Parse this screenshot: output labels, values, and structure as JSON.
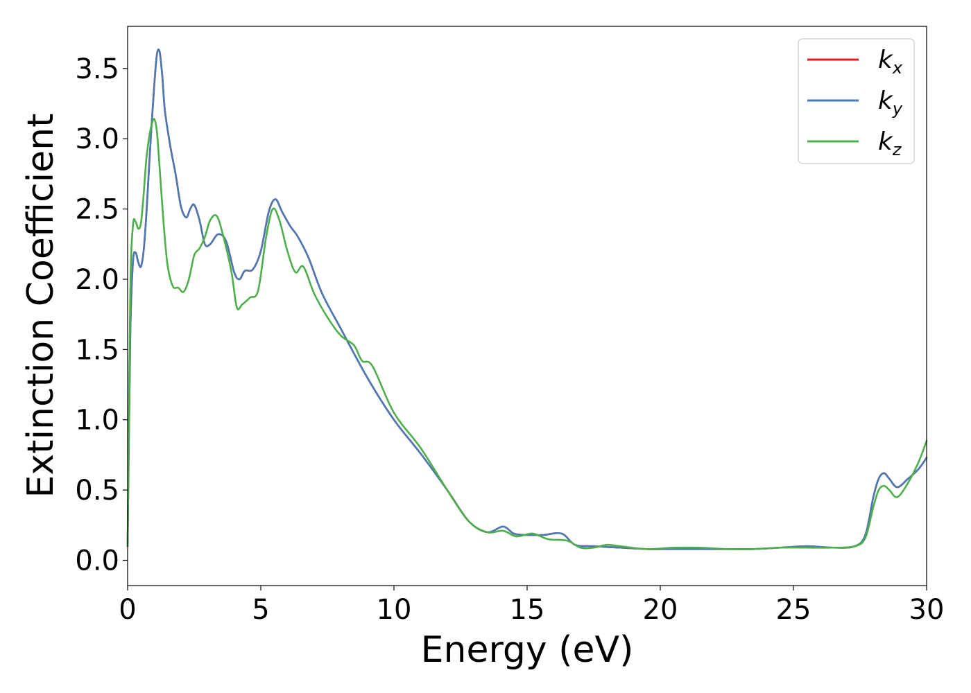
{
  "chart_data": {
    "type": "line",
    "xlabel": "Energy (eV)",
    "ylabel": "Extinction Coefficient",
    "xlim": [
      0,
      30
    ],
    "ylim": [
      -0.18,
      3.8
    ],
    "xticks": [
      0,
      5,
      10,
      15,
      20,
      25,
      30
    ],
    "xtick_labels": [
      "0",
      "5",
      "10",
      "15",
      "20",
      "25",
      "30"
    ],
    "yticks": [
      0.0,
      0.5,
      1.0,
      1.5,
      2.0,
      2.5,
      3.0,
      3.5
    ],
    "ytick_labels": [
      "0.0",
      "0.5",
      "1.0",
      "1.5",
      "2.0",
      "2.5",
      "3.0",
      "3.5"
    ],
    "grid": false,
    "legend_position": "top-right",
    "series": [
      {
        "name": "k",
        "subscript": "x",
        "color": "#e41a1c",
        "x": [
          0,
          0.1,
          0.2,
          0.3,
          0.4,
          0.5,
          0.6,
          0.7,
          0.8,
          0.9,
          1.0,
          1.1,
          1.2,
          1.3,
          1.4,
          1.6,
          1.8,
          2.0,
          2.2,
          2.35,
          2.5,
          2.7,
          2.9,
          3.1,
          3.4,
          3.7,
          4.0,
          4.2,
          4.4,
          4.7,
          5.0,
          5.3,
          5.55,
          5.8,
          6.1,
          6.4,
          6.8,
          7.3,
          8.0,
          9.0,
          10.0,
          11.0,
          12.0,
          12.8,
          13.5,
          14.1,
          14.5,
          15.0,
          15.6,
          16.3,
          16.8,
          17.5,
          18.5,
          19.5,
          20.5,
          21.5,
          22.5,
          23.5,
          24.5,
          25.5,
          26.5,
          27.3,
          27.7,
          28.0,
          28.2,
          28.4,
          28.6,
          28.9,
          29.3,
          29.7,
          30.0
        ],
        "y": [
          0.1,
          1.6,
          2.12,
          2.19,
          2.12,
          2.09,
          2.2,
          2.45,
          2.78,
          3.1,
          3.38,
          3.6,
          3.62,
          3.45,
          3.2,
          2.95,
          2.75,
          2.52,
          2.44,
          2.5,
          2.53,
          2.42,
          2.25,
          2.25,
          2.32,
          2.27,
          2.05,
          2.0,
          2.06,
          2.07,
          2.2,
          2.48,
          2.57,
          2.48,
          2.38,
          2.3,
          2.15,
          1.9,
          1.65,
          1.3,
          1.0,
          0.76,
          0.5,
          0.28,
          0.2,
          0.24,
          0.19,
          0.18,
          0.18,
          0.19,
          0.11,
          0.1,
          0.09,
          0.08,
          0.08,
          0.08,
          0.08,
          0.08,
          0.09,
          0.1,
          0.09,
          0.1,
          0.18,
          0.45,
          0.58,
          0.62,
          0.58,
          0.52,
          0.58,
          0.65,
          0.73
        ]
      },
      {
        "name": "k",
        "subscript": "y",
        "color": "#4a7ab5",
        "x": [
          0,
          0.1,
          0.2,
          0.3,
          0.4,
          0.5,
          0.6,
          0.7,
          0.8,
          0.9,
          1.0,
          1.1,
          1.2,
          1.3,
          1.4,
          1.6,
          1.8,
          2.0,
          2.2,
          2.35,
          2.5,
          2.7,
          2.9,
          3.1,
          3.4,
          3.7,
          4.0,
          4.2,
          4.4,
          4.7,
          5.0,
          5.3,
          5.55,
          5.8,
          6.1,
          6.4,
          6.8,
          7.3,
          8.0,
          9.0,
          10.0,
          11.0,
          12.0,
          12.8,
          13.5,
          14.1,
          14.5,
          15.0,
          15.6,
          16.3,
          16.8,
          17.5,
          18.5,
          19.5,
          20.5,
          21.5,
          22.5,
          23.5,
          24.5,
          25.5,
          26.5,
          27.3,
          27.7,
          28.0,
          28.2,
          28.4,
          28.6,
          28.9,
          29.3,
          29.7,
          30.0
        ],
        "y": [
          0.1,
          1.6,
          2.12,
          2.19,
          2.12,
          2.09,
          2.2,
          2.45,
          2.78,
          3.1,
          3.38,
          3.6,
          3.62,
          3.45,
          3.2,
          2.95,
          2.75,
          2.52,
          2.44,
          2.5,
          2.53,
          2.42,
          2.25,
          2.25,
          2.32,
          2.27,
          2.05,
          2.0,
          2.06,
          2.07,
          2.2,
          2.48,
          2.57,
          2.48,
          2.38,
          2.3,
          2.15,
          1.9,
          1.65,
          1.3,
          1.0,
          0.76,
          0.5,
          0.28,
          0.2,
          0.24,
          0.19,
          0.18,
          0.18,
          0.19,
          0.11,
          0.1,
          0.09,
          0.08,
          0.08,
          0.08,
          0.08,
          0.08,
          0.09,
          0.1,
          0.09,
          0.1,
          0.18,
          0.45,
          0.58,
          0.62,
          0.58,
          0.52,
          0.58,
          0.65,
          0.73
        ]
      },
      {
        "name": "k",
        "subscript": "z",
        "color": "#4daf4a",
        "x": [
          0,
          0.1,
          0.2,
          0.3,
          0.4,
          0.5,
          0.6,
          0.7,
          0.8,
          0.9,
          1.0,
          1.1,
          1.2,
          1.35,
          1.5,
          1.7,
          1.9,
          2.1,
          2.3,
          2.5,
          2.7,
          2.9,
          3.1,
          3.35,
          3.6,
          3.9,
          4.1,
          4.3,
          4.6,
          4.9,
          5.2,
          5.45,
          5.7,
          6.0,
          6.3,
          6.6,
          7.0,
          7.5,
          8.0,
          8.5,
          8.8,
          9.2,
          10.0,
          11.0,
          12.0,
          12.8,
          13.5,
          14.1,
          14.6,
          15.2,
          15.8,
          16.5,
          17.0,
          17.5,
          18.0,
          18.5,
          19.5,
          20.5,
          21.5,
          22.5,
          23.5,
          24.5,
          25.5,
          26.5,
          27.3,
          27.7,
          28.0,
          28.2,
          28.4,
          28.6,
          28.9,
          29.3,
          29.7,
          30.0
        ],
        "y": [
          0.1,
          1.9,
          2.38,
          2.41,
          2.36,
          2.4,
          2.6,
          2.85,
          3.0,
          3.1,
          3.14,
          3.05,
          2.8,
          2.4,
          2.1,
          1.95,
          1.94,
          1.91,
          2.0,
          2.17,
          2.22,
          2.3,
          2.42,
          2.45,
          2.3,
          2.05,
          1.8,
          1.82,
          1.87,
          1.92,
          2.3,
          2.5,
          2.42,
          2.2,
          2.05,
          2.09,
          1.9,
          1.73,
          1.6,
          1.53,
          1.42,
          1.38,
          1.05,
          0.8,
          0.5,
          0.28,
          0.2,
          0.21,
          0.17,
          0.19,
          0.15,
          0.14,
          0.09,
          0.09,
          0.11,
          0.1,
          0.08,
          0.09,
          0.09,
          0.08,
          0.08,
          0.09,
          0.09,
          0.09,
          0.1,
          0.16,
          0.38,
          0.5,
          0.53,
          0.5,
          0.45,
          0.55,
          0.7,
          0.85
        ]
      }
    ]
  }
}
